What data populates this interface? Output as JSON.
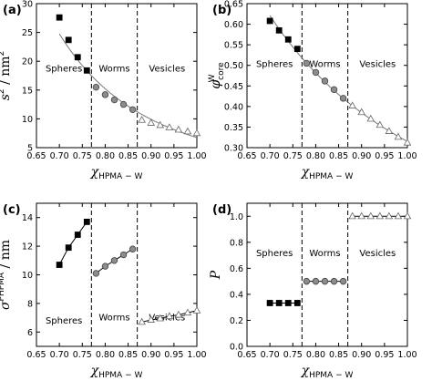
{
  "chart_data": [
    {
      "type": "scatter",
      "panel": "(a)",
      "ylabel_symbol": "s",
      "ylabel_unit": "/ nm",
      "ylabel_sup": "2",
      "xlabel_symbol": "χ",
      "xlabel_sub": "HPMA − W",
      "xlim": [
        0.65,
        1.0
      ],
      "ylim": [
        5,
        30
      ],
      "xticks": [
        "0.65",
        "0.70",
        "0.75",
        "0.80",
        "0.85",
        "0.90",
        "0.95",
        "1.00"
      ],
      "yticks": [
        "5",
        "10",
        "15",
        "20",
        "25",
        "30"
      ],
      "boundaries": [
        0.77,
        0.87
      ],
      "regions": [
        "Spheres",
        "Worms",
        "Vesicles"
      ],
      "fit_curve": true,
      "series": [
        {
          "marker": "square",
          "x": [
            0.7,
            0.72,
            0.74,
            0.76
          ],
          "y": [
            27.6,
            23.7,
            20.7,
            18.4
          ]
        },
        {
          "marker": "circle",
          "x": [
            0.78,
            0.8,
            0.82,
            0.84,
            0.86
          ],
          "y": [
            15.5,
            14.2,
            13.3,
            12.5,
            11.6
          ]
        },
        {
          "marker": "triangle",
          "x": [
            0.88,
            0.9,
            0.92,
            0.94,
            0.96,
            0.98,
            1.0
          ],
          "y": [
            9.8,
            9.3,
            8.9,
            8.5,
            8.1,
            7.8,
            7.5
          ]
        }
      ]
    },
    {
      "type": "scatter",
      "panel": "(b)",
      "ylabel_symbol": "φ",
      "ylabel_sup": "W",
      "ylabel_sub": "core",
      "xlabel_symbol": "χ",
      "xlabel_sub": "HPMA − W",
      "xlim": [
        0.65,
        1.0
      ],
      "ylim": [
        0.3,
        0.65
      ],
      "xticks": [
        "0.65",
        "0.70",
        "0.75",
        "0.80",
        "0.85",
        "0.90",
        "0.95",
        "1.00"
      ],
      "yticks": [
        "0.30",
        "0.35",
        "0.40",
        "0.45",
        "0.50",
        "0.55",
        "0.60",
        "0.65"
      ],
      "boundaries": [
        0.77,
        0.87
      ],
      "regions": [
        "Spheres",
        "Worms",
        "Vesicles"
      ],
      "fit_curve": true,
      "series": [
        {
          "marker": "square",
          "x": [
            0.7,
            0.72,
            0.74,
            0.76
          ],
          "y": [
            0.608,
            0.585,
            0.563,
            0.54
          ]
        },
        {
          "marker": "circle",
          "x": [
            0.78,
            0.8,
            0.82,
            0.84,
            0.86
          ],
          "y": [
            0.505,
            0.483,
            0.462,
            0.441,
            0.42
          ]
        },
        {
          "marker": "triangle",
          "x": [
            0.88,
            0.9,
            0.92,
            0.94,
            0.96,
            0.98,
            1.0
          ],
          "y": [
            0.402,
            0.386,
            0.37,
            0.355,
            0.34,
            0.326,
            0.312
          ]
        }
      ]
    },
    {
      "type": "scatter",
      "panel": "(c)",
      "ylabel_symbol": "σ",
      "ylabel_sup": "PHPMA",
      "ylabel_unit": "/ nm",
      "xlabel_symbol": "χ",
      "xlabel_sub": "HPMA − W",
      "xlim": [
        0.65,
        1.0
      ],
      "ylim": [
        5,
        15
      ],
      "xticks": [
        "0.65",
        "0.70",
        "0.75",
        "0.80",
        "0.85",
        "0.90",
        "0.95",
        "1.00"
      ],
      "yticks": [
        "6",
        "8",
        "10",
        "12",
        "14"
      ],
      "boundaries": [
        0.77,
        0.87
      ],
      "regions": [
        "Spheres",
        "Worms",
        "Vesicles"
      ],
      "fit_curve": false,
      "series": [
        {
          "marker": "square",
          "x": [
            0.7,
            0.72,
            0.74,
            0.76
          ],
          "y": [
            10.7,
            11.9,
            12.8,
            13.7
          ]
        },
        {
          "marker": "circle",
          "x": [
            0.78,
            0.8,
            0.82,
            0.84,
            0.86
          ],
          "y": [
            10.1,
            10.6,
            11.0,
            11.4,
            11.8
          ]
        },
        {
          "marker": "triangle",
          "x": [
            0.88,
            0.9,
            0.92,
            0.94,
            0.96,
            0.98,
            1.0
          ],
          "y": [
            6.7,
            6.85,
            6.95,
            7.1,
            7.2,
            7.35,
            7.5
          ]
        }
      ]
    },
    {
      "type": "scatter",
      "panel": "(d)",
      "ylabel_symbol": "P",
      "xlabel_symbol": "χ",
      "xlabel_sub": "HPMA − W",
      "xlim": [
        0.65,
        1.0
      ],
      "ylim": [
        0.0,
        1.1
      ],
      "xticks": [
        "0.65",
        "0.70",
        "0.75",
        "0.80",
        "0.85",
        "0.90",
        "0.95",
        "1.00"
      ],
      "yticks": [
        "0.0",
        "0.2",
        "0.4",
        "0.6",
        "0.8",
        "1.0"
      ],
      "boundaries": [
        0.77,
        0.87
      ],
      "regions": [
        "Spheres",
        "Worms",
        "Vesicles"
      ],
      "fit_curve": false,
      "series": [
        {
          "marker": "square",
          "x": [
            0.7,
            0.72,
            0.74,
            0.76
          ],
          "y": [
            0.333,
            0.333,
            0.333,
            0.333
          ]
        },
        {
          "marker": "circle",
          "x": [
            0.78,
            0.8,
            0.82,
            0.84,
            0.86
          ],
          "y": [
            0.5,
            0.5,
            0.5,
            0.5,
            0.5
          ]
        },
        {
          "marker": "triangle",
          "x": [
            0.88,
            0.9,
            0.92,
            0.94,
            0.96,
            0.98,
            1.0
          ],
          "y": [
            1.0,
            1.0,
            1.0,
            1.0,
            1.0,
            1.0,
            1.0
          ]
        }
      ]
    }
  ],
  "colors": {
    "square": "#000000",
    "circle": "#8c8c8c",
    "triangle": "#ffffff",
    "line": "#000000",
    "fit": "#777777"
  }
}
